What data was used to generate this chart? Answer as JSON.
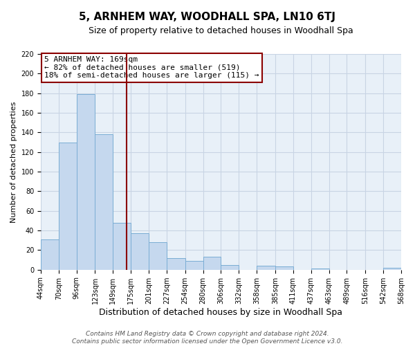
{
  "title": "5, ARNHEM WAY, WOODHALL SPA, LN10 6TJ",
  "subtitle": "Size of property relative to detached houses in Woodhall Spa",
  "xlabel": "Distribution of detached houses by size in Woodhall Spa",
  "ylabel": "Number of detached properties",
  "footer_line1": "Contains HM Land Registry data © Crown copyright and database right 2024.",
  "footer_line2": "Contains public sector information licensed under the Open Government Licence v3.0.",
  "annotation_line1": "5 ARNHEM WAY: 169sqm",
  "annotation_line2": "← 82% of detached houses are smaller (519)",
  "annotation_line3": "18% of semi-detached houses are larger (115) →",
  "bar_color": "#c5d8ee",
  "bar_edge_color": "#7aadd4",
  "vline_color": "#8b0000",
  "annotation_box_edge": "#8b0000",
  "background_color": "#ffffff",
  "plot_bg_color": "#e8f0f8",
  "grid_color": "#c8d4e4",
  "bin_edges": [
    44,
    70,
    96,
    123,
    149,
    175,
    201,
    227,
    254,
    280,
    306,
    332,
    358,
    385,
    411,
    437,
    463,
    489,
    516,
    542,
    568
  ],
  "counts": [
    31,
    130,
    179,
    138,
    48,
    37,
    28,
    12,
    9,
    13,
    5,
    0,
    4,
    3,
    0,
    1,
    0,
    0,
    0,
    2
  ],
  "vline_x": 169,
  "ylim": [
    0,
    220
  ],
  "yticks": [
    0,
    20,
    40,
    60,
    80,
    100,
    120,
    140,
    160,
    180,
    200,
    220
  ],
  "title_fontsize": 11,
  "subtitle_fontsize": 9,
  "ylabel_fontsize": 8,
  "xlabel_fontsize": 9,
  "tick_fontsize": 7,
  "annotation_fontsize": 8,
  "footer_fontsize": 6.5
}
